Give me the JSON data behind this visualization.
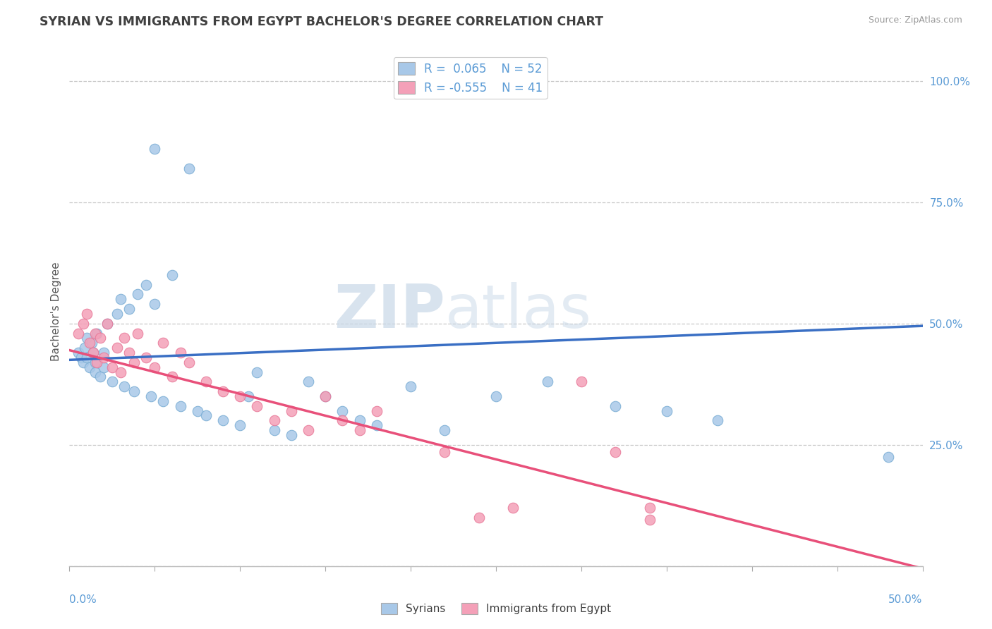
{
  "title": "SYRIAN VS IMMIGRANTS FROM EGYPT BACHELOR'S DEGREE CORRELATION CHART",
  "source": "Source: ZipAtlas.com",
  "ylabel": "Bachelor's Degree",
  "xlim": [
    0.0,
    0.5
  ],
  "ylim": [
    0.0,
    1.05
  ],
  "blue_R": 0.065,
  "blue_N": 52,
  "pink_R": -0.555,
  "pink_N": 41,
  "blue_color": "#a8c8e8",
  "pink_color": "#f4a0b8",
  "blue_line_color": "#3a6fc4",
  "pink_line_color": "#e8507a",
  "legend_label_blue": "Syrians",
  "legend_label_pink": "Immigrants from Egypt",
  "watermark_zip": "ZIP",
  "watermark_atlas": "atlas",
  "background_color": "#ffffff",
  "blue_x": [
    0.005,
    0.007,
    0.008,
    0.009,
    0.01,
    0.01,
    0.012,
    0.013,
    0.014,
    0.015,
    0.015,
    0.016,
    0.018,
    0.02,
    0.02,
    0.022,
    0.025,
    0.028,
    0.03,
    0.032,
    0.035,
    0.038,
    0.04,
    0.045,
    0.048,
    0.05,
    0.055,
    0.06,
    0.065,
    0.07,
    0.075,
    0.08,
    0.09,
    0.1,
    0.105,
    0.11,
    0.12,
    0.13,
    0.14,
    0.15,
    0.16,
    0.17,
    0.18,
    0.2,
    0.22,
    0.25,
    0.28,
    0.32,
    0.35,
    0.38,
    0.05,
    0.48
  ],
  "blue_y": [
    0.44,
    0.43,
    0.42,
    0.45,
    0.47,
    0.43,
    0.41,
    0.46,
    0.44,
    0.42,
    0.4,
    0.48,
    0.39,
    0.44,
    0.41,
    0.5,
    0.38,
    0.52,
    0.55,
    0.37,
    0.53,
    0.36,
    0.56,
    0.58,
    0.35,
    0.54,
    0.34,
    0.6,
    0.33,
    0.82,
    0.32,
    0.31,
    0.3,
    0.29,
    0.35,
    0.4,
    0.28,
    0.27,
    0.38,
    0.35,
    0.32,
    0.3,
    0.29,
    0.37,
    0.28,
    0.35,
    0.38,
    0.33,
    0.32,
    0.3,
    0.86,
    0.225
  ],
  "pink_x": [
    0.005,
    0.008,
    0.01,
    0.012,
    0.014,
    0.015,
    0.016,
    0.018,
    0.02,
    0.022,
    0.025,
    0.028,
    0.03,
    0.032,
    0.035,
    0.038,
    0.04,
    0.045,
    0.05,
    0.055,
    0.06,
    0.065,
    0.07,
    0.08,
    0.09,
    0.1,
    0.11,
    0.12,
    0.13,
    0.14,
    0.15,
    0.16,
    0.17,
    0.18,
    0.22,
    0.26,
    0.3,
    0.32,
    0.34,
    0.24,
    0.34
  ],
  "pink_y": [
    0.48,
    0.5,
    0.52,
    0.46,
    0.44,
    0.48,
    0.42,
    0.47,
    0.43,
    0.5,
    0.41,
    0.45,
    0.4,
    0.47,
    0.44,
    0.42,
    0.48,
    0.43,
    0.41,
    0.46,
    0.39,
    0.44,
    0.42,
    0.38,
    0.36,
    0.35,
    0.33,
    0.3,
    0.32,
    0.28,
    0.35,
    0.3,
    0.28,
    0.32,
    0.235,
    0.12,
    0.38,
    0.235,
    0.12,
    0.1,
    0.095
  ],
  "ytick_positions": [
    0.0,
    0.25,
    0.5,
    0.75,
    1.0
  ],
  "ytick_labels": [
    "",
    "25.0%",
    "50.0%",
    "75.0%",
    "100.0%"
  ],
  "blue_line_x0": 0.0,
  "blue_line_x1": 0.5,
  "blue_line_y0": 0.425,
  "blue_line_y1": 0.495,
  "pink_line_x0": 0.0,
  "pink_line_x1": 0.5,
  "pink_line_y0": 0.445,
  "pink_line_y1": -0.005
}
